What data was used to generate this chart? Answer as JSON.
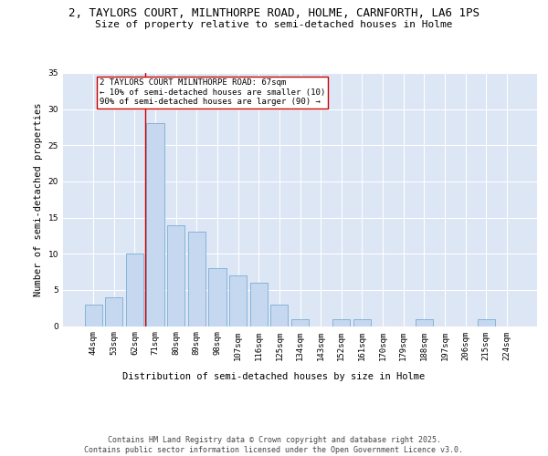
{
  "title_line1": "2, TAYLORS COURT, MILNTHORPE ROAD, HOLME, CARNFORTH, LA6 1PS",
  "title_line2": "Size of property relative to semi-detached houses in Holme",
  "xlabel": "Distribution of semi-detached houses by size in Holme",
  "ylabel": "Number of semi-detached properties",
  "categories": [
    "44sqm",
    "53sqm",
    "62sqm",
    "71sqm",
    "80sqm",
    "89sqm",
    "98sqm",
    "107sqm",
    "116sqm",
    "125sqm",
    "134sqm",
    "143sqm",
    "152sqm",
    "161sqm",
    "170sqm",
    "179sqm",
    "188sqm",
    "197sqm",
    "206sqm",
    "215sqm",
    "224sqm"
  ],
  "values": [
    3,
    4,
    10,
    28,
    14,
    13,
    8,
    7,
    6,
    3,
    1,
    0,
    1,
    1,
    0,
    0,
    1,
    0,
    0,
    1,
    0
  ],
  "bar_color": "#c5d8f0",
  "bar_edge_color": "#7aadd4",
  "red_line_x": 2.5,
  "annotation_text": "2 TAYLORS COURT MILNTHORPE ROAD: 67sqm\n← 10% of semi-detached houses are smaller (10)\n90% of semi-detached houses are larger (90) →",
  "annotation_box_color": "#ffffff",
  "annotation_box_edge_color": "#cc0000",
  "ylim": [
    0,
    35
  ],
  "yticks": [
    0,
    5,
    10,
    15,
    20,
    25,
    30,
    35
  ],
  "background_color": "#dce6f5",
  "grid_color": "#ffffff",
  "footer": "Contains HM Land Registry data © Crown copyright and database right 2025.\nContains public sector information licensed under the Open Government Licence v3.0.",
  "title_fontsize": 9,
  "subtitle_fontsize": 8,
  "axis_label_fontsize": 7.5,
  "tick_fontsize": 6.5,
  "annotation_fontsize": 6.5,
  "footer_fontsize": 6
}
